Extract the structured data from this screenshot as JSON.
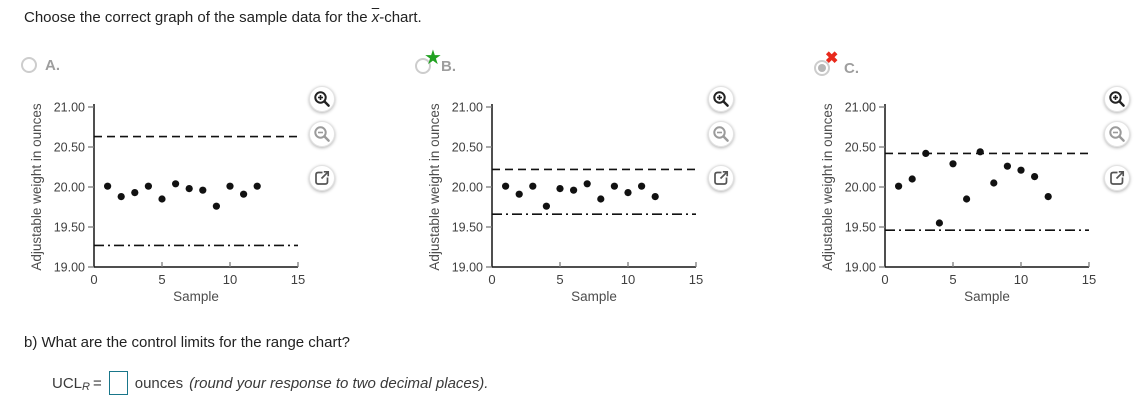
{
  "question": {
    "prefix": "Choose the correct graph of the sample data for the ",
    "xbar": "x",
    "suffix": "-chart."
  },
  "options": [
    {
      "label": "A.",
      "marker": "none",
      "selected": false
    },
    {
      "label": "B.",
      "marker": "correct",
      "selected": false
    },
    {
      "label": "C.",
      "marker": "incorrect",
      "selected": true
    }
  ],
  "icons": {
    "correct_star": "★",
    "incorrect_x": "✖"
  },
  "chart_controls": [
    "zoom-in",
    "zoom-out",
    "open-in-new-window"
  ],
  "chart_data": [
    {
      "option": "A",
      "type": "scatter",
      "title": "",
      "xlabel": "Sample",
      "ylabel": "Adjustable weight in ounces",
      "xlim": [
        0,
        15
      ],
      "ylim": [
        19.0,
        21.0
      ],
      "xticks": [
        0,
        5,
        10,
        15
      ],
      "yticks": [
        19.0,
        19.5,
        20.0,
        20.5,
        21.0
      ],
      "x": [
        1,
        2,
        3,
        4,
        5,
        6,
        7,
        8,
        9,
        10,
        11,
        12
      ],
      "y": [
        20.01,
        19.88,
        19.93,
        20.01,
        19.85,
        20.04,
        19.98,
        19.96,
        19.76,
        20.01,
        19.91,
        20.01
      ],
      "ucl": 20.63,
      "lcl": 19.27,
      "ucl_style": "dashed",
      "lcl_style": "dash-dot",
      "grid": false,
      "legend": "none"
    },
    {
      "option": "B",
      "type": "scatter",
      "title": "",
      "xlabel": "Sample",
      "ylabel": "Adjustable weight in ounces",
      "xlim": [
        0,
        15
      ],
      "ylim": [
        19.0,
        21.0
      ],
      "xticks": [
        0,
        5,
        10,
        15
      ],
      "yticks": [
        19.0,
        19.5,
        20.0,
        20.5,
        21.0
      ],
      "x": [
        1,
        2,
        3,
        4,
        5,
        6,
        7,
        8,
        9,
        10,
        11,
        12
      ],
      "y": [
        20.01,
        19.91,
        20.01,
        19.76,
        19.98,
        19.96,
        20.04,
        19.85,
        20.01,
        19.93,
        20.01,
        19.88
      ],
      "ucl": 20.22,
      "lcl": 19.66,
      "ucl_style": "dashed",
      "lcl_style": "dash-dot",
      "grid": false,
      "legend": "none"
    },
    {
      "option": "C",
      "type": "scatter",
      "title": "",
      "xlabel": "Sample",
      "ylabel": "Adjustable weight in ounces",
      "xlim": [
        0,
        15
      ],
      "ylim": [
        19.0,
        21.0
      ],
      "xticks": [
        0,
        5,
        10,
        15
      ],
      "yticks": [
        19.0,
        19.5,
        20.0,
        20.5,
        21.0
      ],
      "x": [
        1,
        2,
        3,
        4,
        5,
        6,
        7,
        8,
        9,
        10,
        11,
        12
      ],
      "y": [
        20.01,
        20.1,
        20.42,
        19.55,
        20.29,
        19.85,
        20.44,
        20.05,
        20.26,
        20.21,
        20.13,
        19.88
      ],
      "ucl": 20.42,
      "lcl": 19.46,
      "ucl_style": "dashed",
      "lcl_style": "dash-dot",
      "grid": false,
      "legend": "none"
    }
  ],
  "part_b": {
    "text": "b) What are the control limits for the range chart?",
    "ucl_label": "UCL",
    "ucl_sub": "R",
    "equals": "=",
    "input_value": "",
    "units": "ounces",
    "note": "(round your response to two decimal places)."
  },
  "colors": {
    "correct_green": "#21a121",
    "incorrect_red": "#e8291c",
    "input_border_teal": "#19768a",
    "option_label_gray": "#9e9e9e",
    "plot_ink": "#111111"
  }
}
